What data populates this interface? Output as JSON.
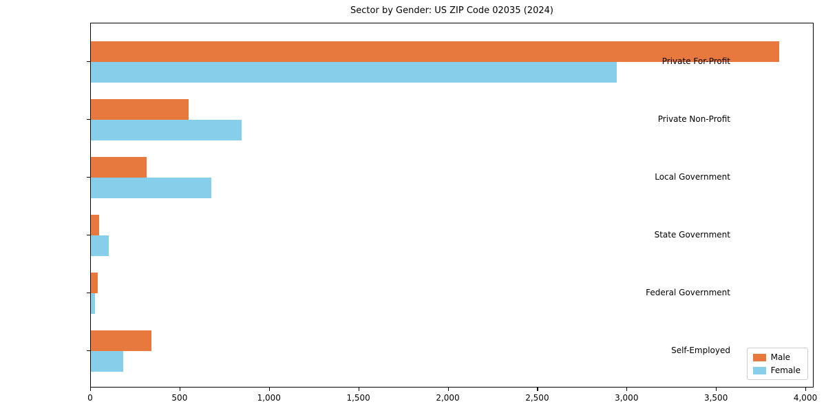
{
  "chart_data": {
    "type": "bar",
    "orientation": "horizontal",
    "title": "Sector by Gender: US ZIP Code 02035 (2024)",
    "categories": [
      "Private For-Profit",
      "Private Non-Profit",
      "Local Government",
      "State Government",
      "Federal Government",
      "Self-Employed"
    ],
    "series": [
      {
        "name": "Male",
        "color": "#E8793E",
        "values": [
          3850,
          545,
          310,
          45,
          40,
          340
        ]
      },
      {
        "name": "Female",
        "color": "#87CEEB",
        "values": [
          2940,
          845,
          675,
          100,
          25,
          180
        ]
      }
    ],
    "xlabel": "",
    "ylabel": "",
    "xlim": [
      0,
      4046
    ],
    "xticks": {
      "values": [
        0,
        500,
        1000,
        1500,
        2000,
        2500,
        3000,
        3500,
        4000
      ],
      "labels": [
        "0",
        "500",
        "1,000",
        "1,500",
        "2,000",
        "2,500",
        "3,000",
        "3,500",
        "4,000"
      ]
    },
    "grid": false,
    "legend": {
      "position": "lower right",
      "entries": [
        "Male",
        "Female"
      ]
    }
  }
}
